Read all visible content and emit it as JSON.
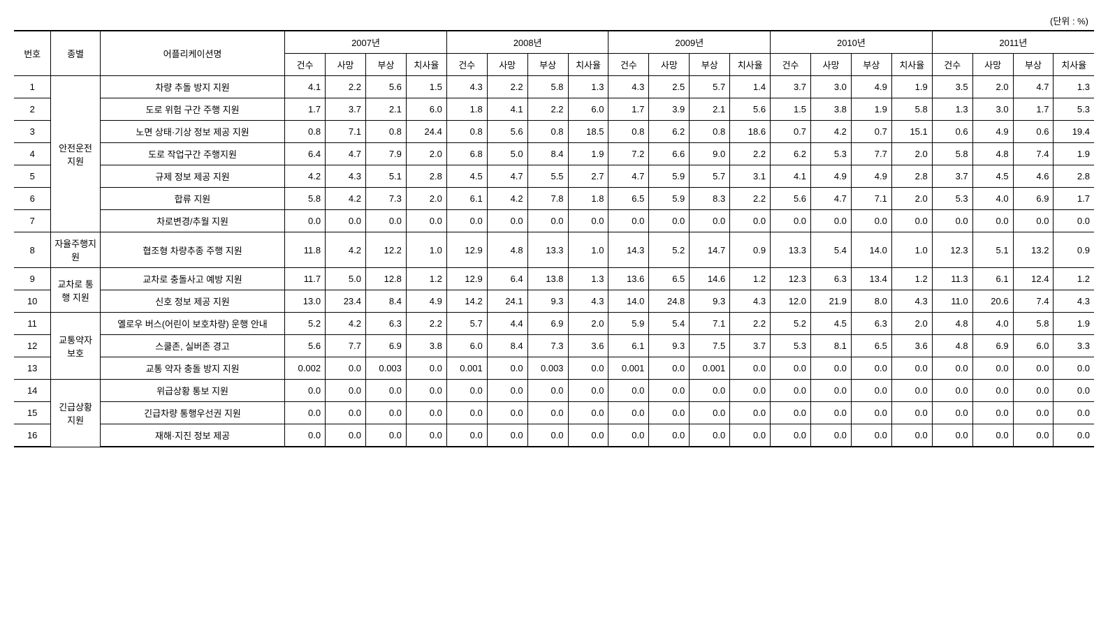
{
  "unit_label": "(단위 : %)",
  "header": {
    "num": "번호",
    "category": "종별",
    "app": "어플리케이션명",
    "years": [
      "2007년",
      "2008년",
      "2009년",
      "2010년",
      "2011년"
    ],
    "metrics": [
      "건수",
      "사망",
      "부상",
      "치사율"
    ]
  },
  "categories": [
    {
      "label": "안전운전 지원",
      "rows": [
        0,
        1,
        2,
        3,
        4,
        5,
        6
      ]
    },
    {
      "label": "자율주행지원",
      "rows": [
        7
      ]
    },
    {
      "label": "교차로 통행 지원",
      "rows": [
        8,
        9
      ]
    },
    {
      "label": "교통약자 보호",
      "rows": [
        10,
        11,
        12
      ]
    },
    {
      "label": "긴급상황 지원",
      "rows": [
        13,
        14,
        15
      ]
    }
  ],
  "rows": [
    {
      "num": "1",
      "app": "차량 추돌 방지 지원",
      "data": [
        "4.1",
        "2.2",
        "5.6",
        "1.5",
        "4.3",
        "2.2",
        "5.8",
        "1.3",
        "4.3",
        "2.5",
        "5.7",
        "1.4",
        "3.7",
        "3.0",
        "4.9",
        "1.9",
        "3.5",
        "2.0",
        "4.7",
        "1.3"
      ]
    },
    {
      "num": "2",
      "app": "도로 위험 구간 주행 지원",
      "data": [
        "1.7",
        "3.7",
        "2.1",
        "6.0",
        "1.8",
        "4.1",
        "2.2",
        "6.0",
        "1.7",
        "3.9",
        "2.1",
        "5.6",
        "1.5",
        "3.8",
        "1.9",
        "5.8",
        "1.3",
        "3.0",
        "1.7",
        "5.3"
      ]
    },
    {
      "num": "3",
      "app": "노면 상태·기상 정보 제공 지원",
      "data": [
        "0.8",
        "7.1",
        "0.8",
        "24.4",
        "0.8",
        "5.6",
        "0.8",
        "18.5",
        "0.8",
        "6.2",
        "0.8",
        "18.6",
        "0.7",
        "4.2",
        "0.7",
        "15.1",
        "0.6",
        "4.9",
        "0.6",
        "19.4"
      ]
    },
    {
      "num": "4",
      "app": "도로 작업구간 주행지원",
      "data": [
        "6.4",
        "4.7",
        "7.9",
        "2.0",
        "6.8",
        "5.0",
        "8.4",
        "1.9",
        "7.2",
        "6.6",
        "9.0",
        "2.2",
        "6.2",
        "5.3",
        "7.7",
        "2.0",
        "5.8",
        "4.8",
        "7.4",
        "1.9"
      ]
    },
    {
      "num": "5",
      "app": "규제 정보 제공 지원",
      "data": [
        "4.2",
        "4.3",
        "5.1",
        "2.8",
        "4.5",
        "4.7",
        "5.5",
        "2.7",
        "4.7",
        "5.9",
        "5.7",
        "3.1",
        "4.1",
        "4.9",
        "4.9",
        "2.8",
        "3.7",
        "4.5",
        "4.6",
        "2.8"
      ]
    },
    {
      "num": "6",
      "app": "합류 지원",
      "data": [
        "5.8",
        "4.2",
        "7.3",
        "2.0",
        "6.1",
        "4.2",
        "7.8",
        "1.8",
        "6.5",
        "5.9",
        "8.3",
        "2.2",
        "5.6",
        "4.7",
        "7.1",
        "2.0",
        "5.3",
        "4.0",
        "6.9",
        "1.7"
      ]
    },
    {
      "num": "7",
      "app": "차로변경/추월 지원",
      "data": [
        "0.0",
        "0.0",
        "0.0",
        "0.0",
        "0.0",
        "0.0",
        "0.0",
        "0.0",
        "0.0",
        "0.0",
        "0.0",
        "0.0",
        "0.0",
        "0.0",
        "0.0",
        "0.0",
        "0.0",
        "0.0",
        "0.0",
        "0.0"
      ]
    },
    {
      "num": "8",
      "app": "협조형 차량추종 주행 지원",
      "data": [
        "11.8",
        "4.2",
        "12.2",
        "1.0",
        "12.9",
        "4.8",
        "13.3",
        "1.0",
        "14.3",
        "5.2",
        "14.7",
        "0.9",
        "13.3",
        "5.4",
        "14.0",
        "1.0",
        "12.3",
        "5.1",
        "13.2",
        "0.9"
      ]
    },
    {
      "num": "9",
      "app": "교차로 충돌사고 예방 지원",
      "data": [
        "11.7",
        "5.0",
        "12.8",
        "1.2",
        "12.9",
        "6.4",
        "13.8",
        "1.3",
        "13.6",
        "6.5",
        "14.6",
        "1.2",
        "12.3",
        "6.3",
        "13.4",
        "1.2",
        "11.3",
        "6.1",
        "12.4",
        "1.2"
      ]
    },
    {
      "num": "10",
      "app": "신호 정보 제공 지원",
      "data": [
        "13.0",
        "23.4",
        "8.4",
        "4.9",
        "14.2",
        "24.1",
        "9.3",
        "4.3",
        "14.0",
        "24.8",
        "9.3",
        "4.3",
        "12.0",
        "21.9",
        "8.0",
        "4.3",
        "11.0",
        "20.6",
        "7.4",
        "4.3"
      ]
    },
    {
      "num": "11",
      "app": "옐로우 버스(어린이 보호차량) 운행 안내",
      "data": [
        "5.2",
        "4.2",
        "6.3",
        "2.2",
        "5.7",
        "4.4",
        "6.9",
        "2.0",
        "5.9",
        "5.4",
        "7.1",
        "2.2",
        "5.2",
        "4.5",
        "6.3",
        "2.0",
        "4.8",
        "4.0",
        "5.8",
        "1.9"
      ]
    },
    {
      "num": "12",
      "app": "스쿨존, 실버존 경고",
      "data": [
        "5.6",
        "7.7",
        "6.9",
        "3.8",
        "6.0",
        "8.4",
        "7.3",
        "3.6",
        "6.1",
        "9.3",
        "7.5",
        "3.7",
        "5.3",
        "8.1",
        "6.5",
        "3.6",
        "4.8",
        "6.9",
        "6.0",
        "3.3"
      ]
    },
    {
      "num": "13",
      "app": "교통 약자 충돌 방지 지원",
      "data": [
        "0.002",
        "0.0",
        "0.003",
        "0.0",
        "0.001",
        "0.0",
        "0.003",
        "0.0",
        "0.001",
        "0.0",
        "0.001",
        "0.0",
        "0.0",
        "0.0",
        "0.0",
        "0.0",
        "0.0",
        "0.0",
        "0.0",
        "0.0"
      ]
    },
    {
      "num": "14",
      "app": "위급상황 통보 지원",
      "data": [
        "0.0",
        "0.0",
        "0.0",
        "0.0",
        "0.0",
        "0.0",
        "0.0",
        "0.0",
        "0.0",
        "0.0",
        "0.0",
        "0.0",
        "0.0",
        "0.0",
        "0.0",
        "0.0",
        "0.0",
        "0.0",
        "0.0",
        "0.0"
      ]
    },
    {
      "num": "15",
      "app": "긴급차량 통행우선권 지원",
      "data": [
        "0.0",
        "0.0",
        "0.0",
        "0.0",
        "0.0",
        "0.0",
        "0.0",
        "0.0",
        "0.0",
        "0.0",
        "0.0",
        "0.0",
        "0.0",
        "0.0",
        "0.0",
        "0.0",
        "0.0",
        "0.0",
        "0.0",
        "0.0"
      ]
    },
    {
      "num": "16",
      "app": "재해·지진 정보 제공",
      "data": [
        "0.0",
        "0.0",
        "0.0",
        "0.0",
        "0.0",
        "0.0",
        "0.0",
        "0.0",
        "0.0",
        "0.0",
        "0.0",
        "0.0",
        "0.0",
        "0.0",
        "0.0",
        "0.0",
        "0.0",
        "0.0",
        "0.0",
        "0.0"
      ]
    }
  ]
}
